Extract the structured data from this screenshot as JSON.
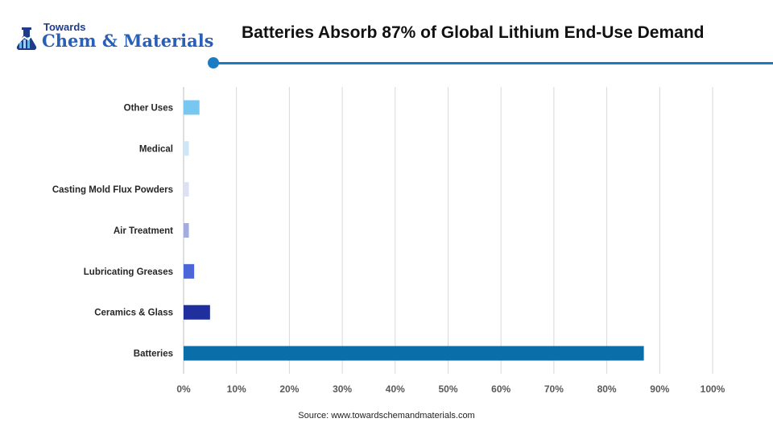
{
  "brand": {
    "towards": "Towards",
    "name": "Chem & Materials"
  },
  "chart_data": {
    "type": "bar",
    "orientation": "horizontal",
    "title": "Batteries Absorb 87% of Global Lithium End-Use Demand",
    "categories": [
      "Batteries",
      "Ceramics & Glass",
      "Lubricating Greases",
      "Air Treatment",
      "Casting Mold Flux Powders",
      "Medical",
      "Other Uses"
    ],
    "values": [
      87,
      5,
      2,
      1,
      1,
      1,
      3
    ],
    "colors": [
      "#0a6ea8",
      "#1f2f9e",
      "#4a66d8",
      "#a3acdf",
      "#dde1f4",
      "#cfe6f7",
      "#78c7f1"
    ],
    "xlim": [
      0,
      100
    ],
    "xticks": [
      "0%",
      "10%",
      "20%",
      "30%",
      "40%",
      "50%",
      "60%",
      "70%",
      "80%",
      "90%",
      "100%"
    ],
    "grid": true,
    "legend": "none"
  },
  "source": "Source:  www.towardschemandmaterials.com"
}
